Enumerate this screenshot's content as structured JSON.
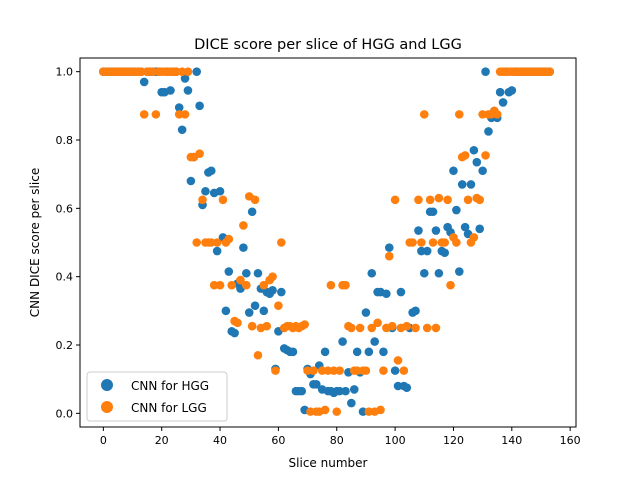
{
  "chart_data": {
    "type": "scatter",
    "title": "DICE score per slice of HGG and LGG",
    "xlabel": "Slice number",
    "ylabel": "CNN DICE score per slice",
    "xlim": [
      -8,
      162
    ],
    "ylim": [
      -0.04,
      1.04
    ],
    "xticks": [
      0,
      20,
      40,
      60,
      80,
      100,
      120,
      140,
      160
    ],
    "xtick_labels": [
      "0",
      "20",
      "40",
      "60",
      "80",
      "100",
      "120",
      "140",
      "160"
    ],
    "yticks": [
      0.0,
      0.2,
      0.4,
      0.6,
      0.8,
      1.0
    ],
    "ytick_labels": [
      "0.0",
      "0.2",
      "0.4",
      "0.6",
      "0.8",
      "1.0"
    ],
    "grid": false,
    "legend": "lower-left",
    "series": [
      {
        "name": "CNN for HGG",
        "color": "#1f77b4",
        "points": [
          [
            0,
            1.0
          ],
          [
            1,
            1.0
          ],
          [
            2,
            1.0
          ],
          [
            3,
            1.0
          ],
          [
            4,
            1.0
          ],
          [
            5,
            1.0
          ],
          [
            6,
            1.0
          ],
          [
            7,
            1.0
          ],
          [
            8,
            1.0
          ],
          [
            9,
            1.0
          ],
          [
            10,
            1.0
          ],
          [
            11,
            1.0
          ],
          [
            12,
            1.0
          ],
          [
            13,
            1.0
          ],
          [
            14,
            0.97
          ],
          [
            15,
            1.0
          ],
          [
            16,
            1.0
          ],
          [
            17,
            1.0
          ],
          [
            18,
            1.0
          ],
          [
            19,
            1.0
          ],
          [
            20,
            0.94
          ],
          [
            21,
            0.94
          ],
          [
            22,
            1.0
          ],
          [
            23,
            0.945
          ],
          [
            24,
            1.0
          ],
          [
            25,
            1.0
          ],
          [
            26,
            0.895
          ],
          [
            27,
            0.83
          ],
          [
            28,
            0.98
          ],
          [
            29,
            0.945
          ],
          [
            30,
            0.68
          ],
          [
            31,
            0.75
          ],
          [
            32,
            1.0
          ],
          [
            33,
            0.9
          ],
          [
            34,
            0.61
          ],
          [
            35,
            0.65
          ],
          [
            36,
            0.705
          ],
          [
            37,
            0.71
          ],
          [
            38,
            0.645
          ],
          [
            39,
            0.475
          ],
          [
            40,
            0.65
          ],
          [
            41,
            0.515
          ],
          [
            42,
            0.3
          ],
          [
            43,
            0.415
          ],
          [
            44,
            0.24
          ],
          [
            45,
            0.235
          ],
          [
            46,
            0.38
          ],
          [
            47,
            0.365
          ],
          [
            48,
            0.485
          ],
          [
            49,
            0.41
          ],
          [
            50,
            0.295
          ],
          [
            51,
            0.59
          ],
          [
            52,
            0.315
          ],
          [
            53,
            0.41
          ],
          [
            54,
            0.365
          ],
          [
            55,
            0.3
          ],
          [
            56,
            0.355
          ],
          [
            57,
            0.35
          ],
          [
            58,
            0.36
          ],
          [
            59,
            0.13
          ],
          [
            60,
            0.24
          ],
          [
            61,
            0.355
          ],
          [
            62,
            0.19
          ],
          [
            63,
            0.185
          ],
          [
            64,
            0.18
          ],
          [
            65,
            0.18
          ],
          [
            66,
            0.065
          ],
          [
            67,
            0.065
          ],
          [
            68,
            0.065
          ],
          [
            69,
            0.01
          ],
          [
            70,
            0.13
          ],
          [
            71,
            0.115
          ],
          [
            72,
            0.085
          ],
          [
            73,
            0.085
          ],
          [
            74,
            0.14
          ],
          [
            75,
            0.07
          ],
          [
            76,
            0.18
          ],
          [
            77,
            0.065
          ],
          [
            78,
            0.065
          ],
          [
            79,
            0.06
          ],
          [
            80,
            0.065
          ],
          [
            81,
            0.065
          ],
          [
            82,
            0.21
          ],
          [
            83,
            0.065
          ],
          [
            84,
            0.12
          ],
          [
            85,
            0.03
          ],
          [
            86,
            0.07
          ],
          [
            87,
            0.18
          ],
          [
            88,
            0.12
          ],
          [
            89,
            0.005
          ],
          [
            90,
            0.295
          ],
          [
            91,
            0.18
          ],
          [
            92,
            0.41
          ],
          [
            93,
            0.21
          ],
          [
            94,
            0.355
          ],
          [
            95,
            0.355
          ],
          [
            96,
            0.18
          ],
          [
            97,
            0.35
          ],
          [
            98,
            0.485
          ],
          [
            99,
            0.25
          ],
          [
            100,
            0.125
          ],
          [
            101,
            0.08
          ],
          [
            102,
            0.355
          ],
          [
            103,
            0.08
          ],
          [
            104,
            0.075
          ],
          [
            105,
            0.25
          ],
          [
            106,
            0.295
          ],
          [
            107,
            0.3
          ],
          [
            108,
            0.535
          ],
          [
            109,
            0.475
          ],
          [
            110,
            0.41
          ],
          [
            111,
            0.475
          ],
          [
            112,
            0.59
          ],
          [
            113,
            0.59
          ],
          [
            114,
            0.535
          ],
          [
            115,
            0.41
          ],
          [
            116,
            0.475
          ],
          [
            117,
            0.47
          ],
          [
            118,
            0.545
          ],
          [
            119,
            0.53
          ],
          [
            120,
            0.71
          ],
          [
            121,
            0.595
          ],
          [
            122,
            0.415
          ],
          [
            123,
            0.67
          ],
          [
            124,
            0.545
          ],
          [
            125,
            0.525
          ],
          [
            126,
            0.67
          ],
          [
            127,
            0.77
          ],
          [
            128,
            0.735
          ],
          [
            129,
            0.54
          ],
          [
            130,
            0.71
          ],
          [
            131,
            1.0
          ],
          [
            132,
            0.825
          ],
          [
            133,
            0.865
          ],
          [
            134,
            0.885
          ],
          [
            135,
            0.865
          ],
          [
            136,
            0.94
          ],
          [
            137,
            0.91
          ],
          [
            138,
            1.0
          ],
          [
            139,
            0.94
          ],
          [
            140,
            0.945
          ],
          [
            141,
            1.0
          ],
          [
            142,
            1.0
          ],
          [
            143,
            1.0
          ],
          [
            144,
            1.0
          ],
          [
            145,
            1.0
          ],
          [
            146,
            1.0
          ],
          [
            147,
            1.0
          ],
          [
            148,
            1.0
          ],
          [
            149,
            1.0
          ],
          [
            150,
            1.0
          ],
          [
            151,
            1.0
          ],
          [
            152,
            1.0
          ],
          [
            153,
            1.0
          ]
        ]
      },
      {
        "name": "CNN for LGG",
        "color": "#ff7f0e",
        "points": [
          [
            0,
            1.0
          ],
          [
            1,
            1.0
          ],
          [
            2,
            1.0
          ],
          [
            3,
            1.0
          ],
          [
            4,
            1.0
          ],
          [
            5,
            1.0
          ],
          [
            6,
            1.0
          ],
          [
            7,
            1.0
          ],
          [
            8,
            1.0
          ],
          [
            9,
            1.0
          ],
          [
            10,
            1.0
          ],
          [
            11,
            1.0
          ],
          [
            12,
            1.0
          ],
          [
            13,
            1.0
          ],
          [
            14,
            0.875
          ],
          [
            15,
            1.0
          ],
          [
            16,
            1.0
          ],
          [
            17,
            1.0
          ],
          [
            18,
            0.875
          ],
          [
            19,
            1.0
          ],
          [
            20,
            1.0
          ],
          [
            21,
            1.0
          ],
          [
            22,
            1.0
          ],
          [
            23,
            1.0
          ],
          [
            24,
            1.0
          ],
          [
            25,
            1.0
          ],
          [
            26,
            0.875
          ],
          [
            27,
            1.0
          ],
          [
            28,
            0.875
          ],
          [
            29,
            1.0
          ],
          [
            30,
            0.75
          ],
          [
            31,
            0.75
          ],
          [
            32,
            0.5
          ],
          [
            33,
            0.76
          ],
          [
            34,
            0.625
          ],
          [
            35,
            0.5
          ],
          [
            36,
            0.5
          ],
          [
            37,
            0.5
          ],
          [
            38,
            0.375
          ],
          [
            39,
            0.5
          ],
          [
            40,
            0.375
          ],
          [
            41,
            0.625
          ],
          [
            42,
            0.5
          ],
          [
            43,
            0.51
          ],
          [
            44,
            0.375
          ],
          [
            45,
            0.27
          ],
          [
            46,
            0.265
          ],
          [
            47,
            0.39
          ],
          [
            48,
            0.55
          ],
          [
            49,
            0.375
          ],
          [
            50,
            0.635
          ],
          [
            51,
            0.255
          ],
          [
            52,
            0.625
          ],
          [
            53,
            0.17
          ],
          [
            54,
            0.25
          ],
          [
            55,
            0.375
          ],
          [
            56,
            0.255
          ],
          [
            57,
            0.39
          ],
          [
            58,
            0.4
          ],
          [
            59,
            0.125
          ],
          [
            60,
            0.315
          ],
          [
            61,
            0.5
          ],
          [
            62,
            0.25
          ],
          [
            63,
            0.255
          ],
          [
            64,
            0.255
          ],
          [
            65,
            0.25
          ],
          [
            66,
            0.255
          ],
          [
            67,
            0.25
          ],
          [
            68,
            0.255
          ],
          [
            69,
            0.26
          ],
          [
            70,
            0.125
          ],
          [
            71,
            0.005
          ],
          [
            72,
            0.125
          ],
          [
            73,
            0.005
          ],
          [
            74,
            0.005
          ],
          [
            75,
            0.125
          ],
          [
            76,
            0.01
          ],
          [
            77,
            0.125
          ],
          [
            78,
            0.375
          ],
          [
            79,
            0.125
          ],
          [
            80,
            0.005
          ],
          [
            81,
            0.125
          ],
          [
            82,
            0.375
          ],
          [
            83,
            0.375
          ],
          [
            84,
            0.255
          ],
          [
            85,
            0.25
          ],
          [
            86,
            0.125
          ],
          [
            87,
            0.125
          ],
          [
            88,
            0.25
          ],
          [
            89,
            0.125
          ],
          [
            90,
            0.125
          ],
          [
            91,
            0.005
          ],
          [
            92,
            0.25
          ],
          [
            93,
            0.005
          ],
          [
            94,
            0.265
          ],
          [
            95,
            0.01
          ],
          [
            96,
            0.125
          ],
          [
            97,
            0.25
          ],
          [
            98,
            0.46
          ],
          [
            99,
            0.255
          ],
          [
            100,
            0.625
          ],
          [
            101,
            0.155
          ],
          [
            102,
            0.25
          ],
          [
            103,
            0.125
          ],
          [
            104,
            0.255
          ],
          [
            105,
            0.5
          ],
          [
            106,
            0.5
          ],
          [
            107,
            0.25
          ],
          [
            108,
            0.625
          ],
          [
            109,
            0.5
          ],
          [
            110,
            0.875
          ],
          [
            111,
            0.25
          ],
          [
            112,
            0.625
          ],
          [
            113,
            0.5
          ],
          [
            114,
            0.25
          ],
          [
            115,
            0.63
          ],
          [
            116,
            0.5
          ],
          [
            117,
            0.5
          ],
          [
            118,
            0.625
          ],
          [
            119,
            0.375
          ],
          [
            120,
            0.515
          ],
          [
            121,
            0.5
          ],
          [
            122,
            0.875
          ],
          [
            123,
            0.75
          ],
          [
            124,
            0.755
          ],
          [
            125,
            0.625
          ],
          [
            126,
            0.5
          ],
          [
            127,
            0.515
          ],
          [
            128,
            0.63
          ],
          [
            129,
            0.625
          ],
          [
            130,
            0.875
          ],
          [
            131,
            0.755
          ],
          [
            132,
            0.875
          ],
          [
            133,
            0.875
          ],
          [
            134,
            0.885
          ],
          [
            135,
            0.875
          ],
          [
            136,
            1.0
          ],
          [
            137,
            1.0
          ],
          [
            138,
            1.0
          ],
          [
            139,
            1.0
          ],
          [
            140,
            1.0
          ],
          [
            141,
            1.0
          ],
          [
            142,
            1.0
          ],
          [
            143,
            1.0
          ],
          [
            144,
            1.0
          ],
          [
            145,
            1.0
          ],
          [
            146,
            1.0
          ],
          [
            147,
            1.0
          ],
          [
            148,
            1.0
          ],
          [
            149,
            1.0
          ],
          [
            150,
            1.0
          ],
          [
            151,
            1.0
          ],
          [
            152,
            1.0
          ],
          [
            153,
            1.0
          ]
        ]
      }
    ]
  }
}
